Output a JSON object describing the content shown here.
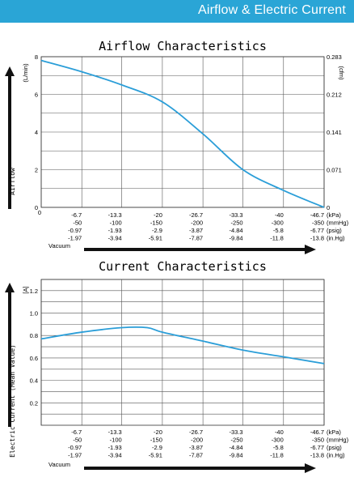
{
  "header": {
    "title": "Airflow & Electric Current"
  },
  "chart_data": [
    {
      "type": "line",
      "title": "Airflow Characteristics",
      "ylabel": "Airflow",
      "y_unit": "(L/min)",
      "y2_unit": "(cfm)",
      "xlabel": "Vacuum",
      "ylim": [
        0,
        8
      ],
      "yticks": [
        "0",
        "2",
        "4",
        "6",
        "8"
      ],
      "y2ticks": [
        "0",
        "0.071",
        "0.141",
        "0.212",
        "0.283"
      ],
      "grid": true,
      "x_rows": [
        {
          "unit": "(kPa)",
          "labels": [
            "-6.7",
            "-13.3",
            "-20",
            "-26.7",
            "-33.3",
            "-40",
            "-46.7"
          ]
        },
        {
          "unit": "(mmHg)",
          "labels": [
            "-50",
            "-100",
            "-150",
            "-200",
            "-250",
            "-300",
            "-350"
          ]
        },
        {
          "unit": "(psig)",
          "labels": [
            "-0.97",
            "-1.93",
            "-2.9",
            "-3.87",
            "-4.84",
            "-5.8",
            "-6.77"
          ]
        },
        {
          "unit": "(in.Hg)",
          "labels": [
            "-1.97",
            "-3.94",
            "-5.91",
            "-7.87",
            "-9.84",
            "-11.8",
            "-13.8"
          ]
        }
      ],
      "series": [
        {
          "x": [
            0,
            -6.7,
            -13.3,
            -20,
            -26.7,
            -33.3,
            -40,
            -46.7
          ],
          "y": [
            7.8,
            7.2,
            6.5,
            5.6,
            3.9,
            2.0,
            0.9,
            0.0
          ]
        }
      ]
    },
    {
      "type": "line",
      "title": "Current Characteristics",
      "ylabel": "Electric Current (Mean Value)",
      "y_unit": "[A]",
      "xlabel": "Vacuum",
      "ylim": [
        0,
        1.3
      ],
      "yticks": [
        "0.2",
        "0.4",
        "0.6",
        "0.8",
        "1.0",
        "1.2"
      ],
      "grid": true,
      "x_rows": [
        {
          "unit": "(kPa)",
          "labels": [
            "-6.7",
            "-13.3",
            "-20",
            "-26.7",
            "-33.3",
            "-40",
            "-46.7"
          ]
        },
        {
          "unit": "(mmHg)",
          "labels": [
            "-50",
            "-100",
            "-150",
            "-200",
            "-250",
            "-300",
            "-350"
          ]
        },
        {
          "unit": "(psig)",
          "labels": [
            "-0.97",
            "-1.93",
            "-2.9",
            "-3.87",
            "-4.84",
            "-5.8",
            "-6.77"
          ]
        },
        {
          "unit": "(in.Hg)",
          "labels": [
            "-1.97",
            "-3.94",
            "-5.91",
            "-7.87",
            "-9.84",
            "-11.8",
            "-13.8"
          ]
        }
      ],
      "series": [
        {
          "x": [
            0,
            -6.7,
            -13.3,
            -17.5,
            -20,
            -26.7,
            -33.3,
            -40,
            -46.7
          ],
          "y": [
            0.77,
            0.83,
            0.87,
            0.87,
            0.83,
            0.75,
            0.67,
            0.61,
            0.55
          ]
        }
      ]
    }
  ],
  "colors": {
    "header": "#2aa5d6",
    "line": "#2b9ed8",
    "grid": "#555555",
    "axis_arrow": "#111111"
  }
}
